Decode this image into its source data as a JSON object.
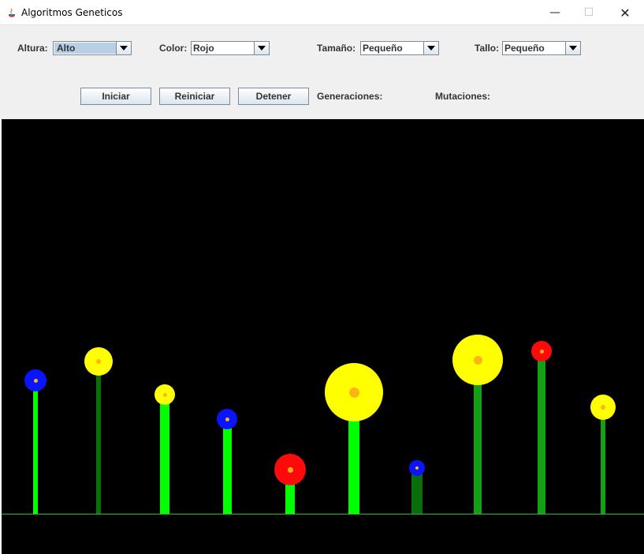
{
  "window": {
    "title": "Algoritmos Geneticos",
    "minimize_glyph": "—",
    "maximize_glyph": "☐",
    "close_glyph": "✕"
  },
  "controls": {
    "altura": {
      "label": "Altura:",
      "value": "Alto"
    },
    "color": {
      "label": "Color:",
      "value": "Rojo"
    },
    "tamano": {
      "label": "Tamaño:",
      "value": "Pequeño"
    },
    "tallo": {
      "label": "Tallo:",
      "value": "Pequeño"
    },
    "buttons": {
      "start": "Iniciar",
      "restart": "Reiniciar",
      "stop": "Detener"
    },
    "generaciones_label": "Generaciones:",
    "mutaciones_label": "Mutaciones:"
  },
  "colors": {
    "bloom": {
      "blue": "#0a14ff",
      "yellow": "#ffff00",
      "red": "#ff0a0a"
    },
    "stem": {
      "bright": "#00ff00",
      "dark": "#0a6e0a",
      "medium": "#14a014"
    },
    "ground": "#2db82d",
    "center": "#ffb414"
  },
  "flowers": [
    {
      "bloom": "blue",
      "stem": "bright",
      "size": "small"
    },
    {
      "bloom": "yellow",
      "stem": "dark",
      "size": "medium"
    },
    {
      "bloom": "yellow",
      "stem": "bright",
      "size": "small"
    },
    {
      "bloom": "blue",
      "stem": "bright",
      "size": "small"
    },
    {
      "bloom": "red",
      "stem": "bright",
      "size": "medium"
    },
    {
      "bloom": "yellow",
      "stem": "bright",
      "size": "large"
    },
    {
      "bloom": "blue",
      "stem": "dark",
      "size": "tiny"
    },
    {
      "bloom": "yellow",
      "stem": "medium",
      "size": "large"
    },
    {
      "bloom": "red",
      "stem": "medium",
      "size": "small"
    },
    {
      "bloom": "yellow",
      "stem": "medium",
      "size": "small"
    }
  ]
}
